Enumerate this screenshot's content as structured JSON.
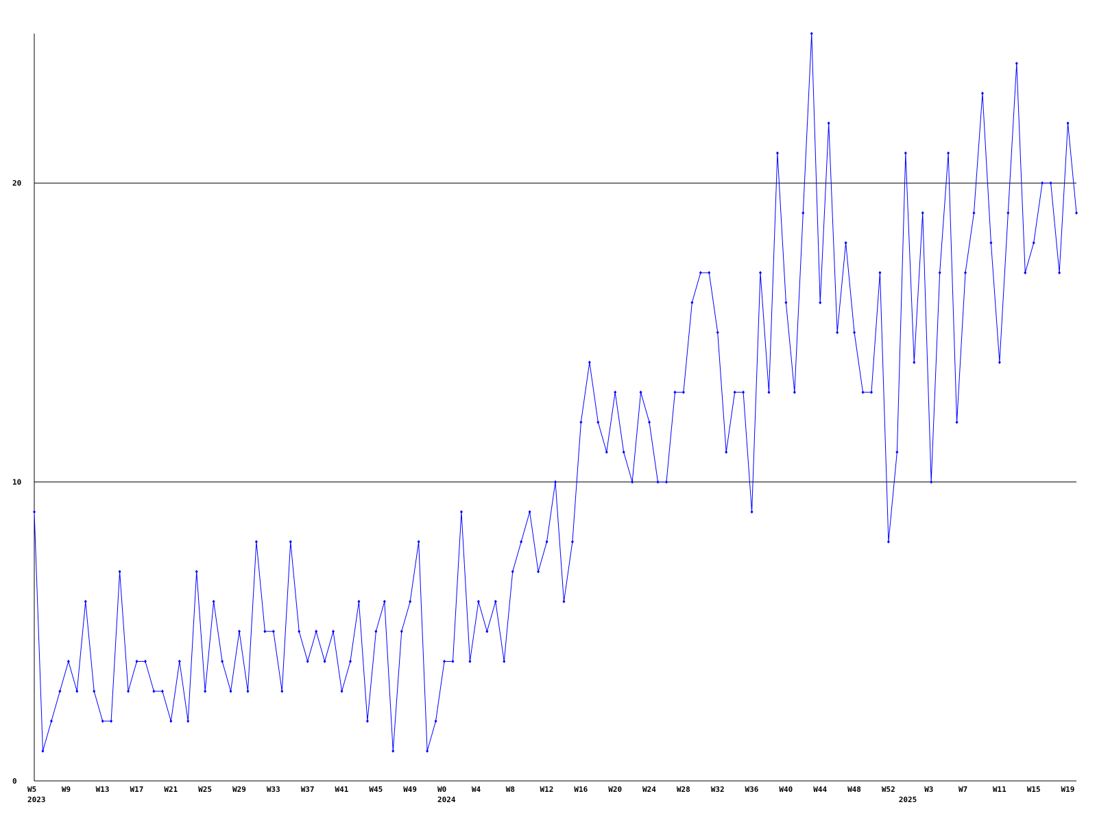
{
  "chart_data": {
    "type": "line",
    "categories": [
      "W5",
      null,
      null,
      null,
      "W9",
      null,
      null,
      null,
      "W13",
      null,
      null,
      null,
      "W17",
      null,
      null,
      null,
      "W21",
      null,
      null,
      null,
      "W25",
      null,
      null,
      null,
      "W29",
      null,
      null,
      null,
      "W33",
      null,
      null,
      null,
      "W37",
      null,
      null,
      null,
      "W41",
      null,
      null,
      null,
      "W45",
      null,
      null,
      null,
      "W49",
      null,
      null,
      null,
      "W0",
      null,
      null,
      null,
      "W4",
      null,
      null,
      null,
      "W8",
      null,
      null,
      null,
      "W12",
      null,
      null,
      null,
      "W16",
      null,
      null,
      null,
      "W20",
      null,
      null,
      null,
      "W24",
      null,
      null,
      null,
      "W28",
      null,
      null,
      null,
      "W32",
      null,
      null,
      null,
      "W36",
      null,
      null,
      null,
      "W40",
      null,
      null,
      null,
      "W44",
      null,
      null,
      null,
      "W48",
      null,
      null,
      null,
      "W52",
      null,
      null,
      null,
      null,
      "W3",
      null,
      null,
      null,
      "W7",
      null,
      null,
      null,
      "W11",
      null,
      null,
      null,
      "W15",
      null,
      null,
      null,
      "W19",
      null
    ],
    "year_labels": [
      "2023",
      null,
      null,
      null,
      null,
      null,
      null,
      null,
      null,
      null,
      null,
      null,
      null,
      null,
      null,
      null,
      null,
      null,
      null,
      null,
      null,
      null,
      null,
      null,
      null,
      null,
      null,
      null,
      null,
      null,
      null,
      null,
      null,
      null,
      null,
      null,
      null,
      null,
      null,
      null,
      null,
      null,
      null,
      null,
      null,
      null,
      null,
      null,
      "2024",
      null,
      null,
      null,
      null,
      null,
      null,
      null,
      null,
      null,
      null,
      null,
      null,
      null,
      null,
      null,
      null,
      null,
      null,
      null,
      null,
      null,
      null,
      null,
      null,
      null,
      null,
      null,
      null,
      null,
      null,
      null,
      null,
      null,
      null,
      null,
      null,
      null,
      null,
      null,
      null,
      null,
      null,
      null,
      null,
      null,
      null,
      null,
      null,
      null,
      null,
      null,
      null,
      null,
      "2025",
      null,
      null,
      null,
      null,
      null,
      null,
      null,
      null,
      null,
      null,
      null,
      null,
      null,
      null,
      null,
      null,
      null,
      null,
      null,
      null
    ],
    "series": [
      {
        "color": "#0000ff",
        "values": [
          9,
          1,
          2,
          3,
          4,
          3,
          6,
          3,
          2,
          2,
          7,
          3,
          4,
          4,
          3,
          3,
          2,
          4,
          2,
          7,
          3,
          6,
          4,
          3,
          5,
          3,
          8,
          5,
          5,
          3,
          8,
          5,
          4,
          5,
          4,
          5,
          3,
          4,
          6,
          2,
          5,
          6,
          1,
          5,
          6,
          8,
          1,
          2,
          4,
          4,
          9,
          4,
          6,
          5,
          6,
          4,
          7,
          8,
          9,
          7,
          8,
          10,
          6,
          8,
          12,
          14,
          12,
          11,
          13,
          11,
          10,
          13,
          12,
          10,
          10,
          13,
          13,
          16,
          17,
          17,
          15,
          11,
          13,
          13,
          9,
          17,
          13,
          21,
          16,
          13,
          19,
          25,
          16,
          22,
          15,
          18,
          15,
          13,
          13,
          17,
          8,
          11,
          21,
          14,
          19,
          10,
          17,
          21,
          12,
          17,
          19,
          23,
          18,
          14,
          19,
          24,
          17,
          18,
          20,
          20,
          17,
          22,
          19
        ]
      }
    ],
    "ylim": [
      0,
      25
    ],
    "yticks": [
      0,
      10,
      20
    ],
    "grid": true
  }
}
